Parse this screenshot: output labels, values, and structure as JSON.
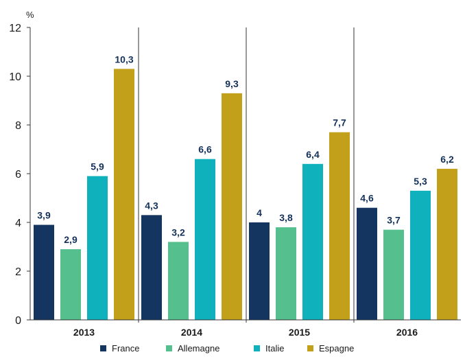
{
  "chart_data": {
    "type": "bar",
    "categories": [
      "2013",
      "2014",
      "2015",
      "2016"
    ],
    "series": [
      {
        "name": "France",
        "color": "#13355f",
        "values": [
          3.9,
          4.3,
          4,
          4.6
        ],
        "labels": [
          "3,9",
          "4,3",
          "4",
          "4,6"
        ]
      },
      {
        "name": "Allemagne",
        "color": "#55c08e",
        "values": [
          2.9,
          3.2,
          3.8,
          3.7
        ],
        "labels": [
          "2,9",
          "3,2",
          "3,8",
          "3,7"
        ]
      },
      {
        "name": "Italie",
        "color": "#0fb2bc",
        "values": [
          5.9,
          6.6,
          6.4,
          5.3
        ],
        "labels": [
          "5,9",
          "6,6",
          "6,4",
          "5,3"
        ]
      },
      {
        "name": "Espagne",
        "color": "#c3a01a",
        "values": [
          10.3,
          9.3,
          7.7,
          6.2
        ],
        "labels": [
          "10,3",
          "9,3",
          "7,7",
          "6,2"
        ]
      }
    ],
    "unit": "%",
    "ylim": [
      0,
      12
    ],
    "yticks": [
      0,
      2,
      4,
      6,
      8,
      10,
      12
    ],
    "grid": false,
    "legend_position": "bottom"
  }
}
